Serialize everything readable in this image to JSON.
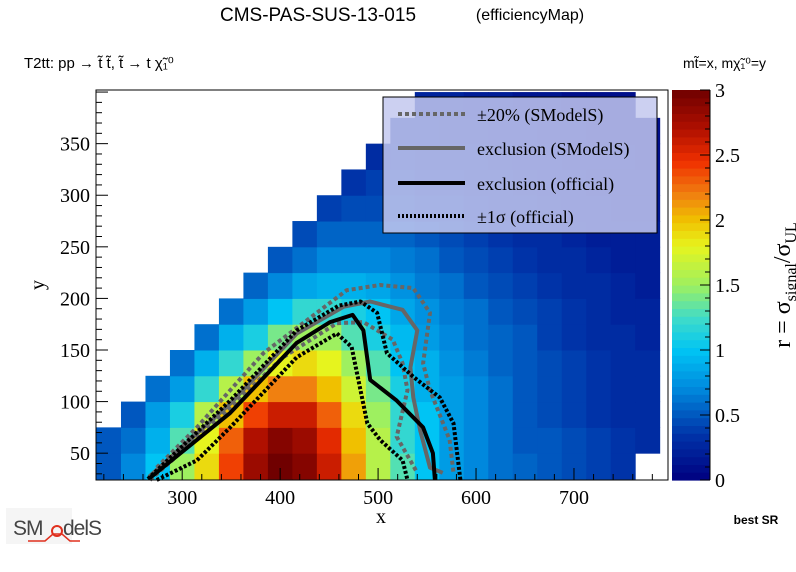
{
  "header": {
    "title": "CMS-PAS-SUS-13-015",
    "subtitle": "(efficiencyMap)",
    "process": "T2tt: pp → t̃ t̃, t̃ → t χ̃₁⁰",
    "mass_def": "mt̃=x, mχ̃₁⁰=y",
    "best_sr": "best SR",
    "logo": "SModelS"
  },
  "chart_data": {
    "type": "heatmap",
    "title": "CMS-PAS-SUS-13-015 (efficiencyMap)",
    "xlabel": "x",
    "ylabel": "y",
    "zlabel_parts": [
      "r = σ",
      "signal",
      "/σ",
      "UL"
    ],
    "xlim": [
      212,
      796
    ],
    "ylim": [
      24,
      402
    ],
    "zlim": [
      0,
      3
    ],
    "x_ticks": [
      "300",
      "400",
      "500",
      "600",
      "700"
    ],
    "y_ticks": [
      "50",
      "100",
      "150",
      "200",
      "250",
      "300",
      "350"
    ],
    "z_ticks": [
      "0",
      "0.5",
      "1",
      "1.5",
      "2",
      "2.5",
      "3"
    ],
    "bin_width": 25,
    "x_centers": [
      225,
      250,
      275,
      300,
      325,
      350,
      375,
      400,
      425,
      450,
      475,
      500,
      525,
      550,
      575,
      600,
      625,
      650,
      675,
      700,
      725,
      750,
      775
    ],
    "y_centers": [
      37.5,
      62.5,
      87.5,
      112.5,
      137.5,
      162.5,
      187.5,
      212.5,
      237.5,
      262.5,
      287.5,
      312.5,
      337.5,
      362.5,
      387.5
    ],
    "values": [
      [
        0.5,
        0.7,
        1.0,
        1.5,
        1.9,
        2.4,
        2.8,
        3.0,
        2.9,
        2.6,
        2.1,
        1.6,
        1.3,
        1.0,
        0.8,
        0.7,
        0.6,
        0.55,
        0.5,
        0.45,
        0.4,
        0.35,
        null
      ],
      [
        0.5,
        0.6,
        0.9,
        1.3,
        1.8,
        2.3,
        2.7,
        2.9,
        2.8,
        2.5,
        2.0,
        1.6,
        1.2,
        1.0,
        0.8,
        0.7,
        0.6,
        0.5,
        0.5,
        0.45,
        0.4,
        0.35,
        0.3
      ],
      [
        null,
        0.5,
        0.8,
        1.1,
        1.6,
        2.0,
        2.4,
        2.6,
        2.6,
        2.3,
        1.9,
        1.5,
        1.2,
        1.0,
        0.8,
        0.7,
        0.6,
        0.5,
        0.45,
        0.4,
        0.35,
        0.3,
        0.3
      ],
      [
        null,
        null,
        0.6,
        0.8,
        1.2,
        1.6,
        2.0,
        2.2,
        2.2,
        2.0,
        1.7,
        1.4,
        1.1,
        0.9,
        0.8,
        0.7,
        0.6,
        0.5,
        0.45,
        0.4,
        0.35,
        0.3,
        0.3
      ],
      [
        null,
        null,
        null,
        0.6,
        0.9,
        1.2,
        1.5,
        1.8,
        1.9,
        1.8,
        1.5,
        1.3,
        1.0,
        0.9,
        0.75,
        0.65,
        0.55,
        0.5,
        0.45,
        0.4,
        0.35,
        0.3,
        0.3
      ],
      [
        null,
        null,
        null,
        null,
        0.6,
        0.9,
        1.1,
        1.4,
        1.5,
        1.5,
        1.3,
        1.1,
        0.95,
        0.8,
        0.7,
        0.6,
        0.55,
        0.5,
        0.4,
        0.35,
        0.3,
        0.3,
        0.25
      ],
      [
        null,
        null,
        null,
        null,
        null,
        0.6,
        0.8,
        1.0,
        1.2,
        1.2,
        1.1,
        1.0,
        0.85,
        0.75,
        0.65,
        0.6,
        0.5,
        0.45,
        0.4,
        0.35,
        0.3,
        0.25,
        0.25
      ],
      [
        null,
        null,
        null,
        null,
        null,
        null,
        0.55,
        0.7,
        0.85,
        0.9,
        0.9,
        0.85,
        0.75,
        0.65,
        0.6,
        0.5,
        0.45,
        0.4,
        0.35,
        0.3,
        0.3,
        0.25,
        0.2
      ],
      [
        null,
        null,
        null,
        null,
        null,
        null,
        null,
        0.5,
        0.6,
        0.7,
        0.7,
        0.7,
        0.65,
        0.6,
        0.5,
        0.45,
        0.4,
        0.35,
        0.3,
        0.3,
        0.25,
        0.2,
        0.2
      ],
      [
        null,
        null,
        null,
        null,
        null,
        null,
        null,
        null,
        0.45,
        0.55,
        0.55,
        0.55,
        0.55,
        0.5,
        0.45,
        0.4,
        0.35,
        0.3,
        0.3,
        0.25,
        0.2,
        0.2,
        0.2
      ],
      [
        null,
        null,
        null,
        null,
        null,
        null,
        null,
        null,
        null,
        0.4,
        0.45,
        0.45,
        0.45,
        0.4,
        0.4,
        0.35,
        0.3,
        0.3,
        0.25,
        0.2,
        0.2,
        0.15,
        0.15
      ],
      [
        null,
        null,
        null,
        null,
        null,
        null,
        null,
        null,
        null,
        null,
        0.35,
        0.4,
        0.4,
        0.35,
        0.35,
        0.3,
        0.3,
        0.25,
        0.2,
        0.2,
        0.15,
        0.15,
        0.15
      ],
      [
        null,
        null,
        null,
        null,
        null,
        null,
        null,
        null,
        null,
        null,
        null,
        0.3,
        0.35,
        0.3,
        0.3,
        0.3,
        0.25,
        0.2,
        0.2,
        0.15,
        0.15,
        0.15,
        0.1
      ],
      [
        null,
        null,
        null,
        null,
        null,
        null,
        null,
        null,
        null,
        null,
        null,
        null,
        0.3,
        0.3,
        0.25,
        0.25,
        0.2,
        0.2,
        0.15,
        0.15,
        0.1,
        0.1,
        0.1
      ],
      [
        null,
        null,
        null,
        null,
        null,
        null,
        null,
        null,
        null,
        null,
        null,
        null,
        null,
        0.25,
        0.25,
        0.2,
        0.2,
        0.15,
        0.15,
        0.1,
        0.1,
        0.1,
        null
      ]
    ],
    "contours": [
      {
        "name": "±20% (SModelS)",
        "style": "gray-dashed",
        "points": [
          [
            274,
            36
          ],
          [
            315,
            75
          ],
          [
            383,
            147
          ],
          [
            468,
            208
          ],
          [
            502,
            213
          ],
          [
            536,
            210
          ],
          [
            553,
            186
          ],
          [
            546,
            137
          ],
          [
            553,
            111
          ],
          [
            573,
            63
          ],
          [
            577,
            31
          ]
        ]
      },
      {
        "name": "±20% (SModelS)",
        "style": "gray-dashed",
        "points": [
          [
            267,
            24
          ],
          [
            332,
            79
          ],
          [
            403,
            143
          ],
          [
            458,
            176
          ],
          [
            485,
            177
          ],
          [
            515,
            160
          ],
          [
            525,
            137
          ],
          [
            530,
            111
          ],
          [
            519,
            66
          ],
          [
            540,
            31
          ]
        ]
      },
      {
        "name": "exclusion (SModelS)",
        "style": "gray-solid",
        "points": [
          [
            266,
            27
          ],
          [
            349,
            98
          ],
          [
            417,
            166
          ],
          [
            465,
            192
          ],
          [
            492,
            197
          ],
          [
            525,
            189
          ],
          [
            540,
            169
          ],
          [
            533,
            133
          ],
          [
            536,
            104
          ],
          [
            543,
            72
          ],
          [
            553,
            36
          ],
          [
            566,
            31
          ]
        ]
      },
      {
        "name": "exclusion (official)",
        "style": "black-solid",
        "points": [
          [
            267,
            26
          ],
          [
            349,
            89
          ],
          [
            417,
            157
          ],
          [
            451,
            177
          ],
          [
            474,
            184
          ],
          [
            485,
            169
          ],
          [
            492,
            121
          ],
          [
            519,
            101
          ],
          [
            546,
            75
          ],
          [
            556,
            50
          ],
          [
            558,
            24
          ]
        ]
      },
      {
        "name": "±1σ (official)",
        "style": "black-dotted",
        "points": [
          [
            265,
            25
          ],
          [
            349,
            101
          ],
          [
            417,
            169
          ],
          [
            460,
            193
          ],
          [
            482,
            197
          ],
          [
            499,
            186
          ],
          [
            509,
            147
          ],
          [
            536,
            124
          ],
          [
            563,
            104
          ],
          [
            577,
            79
          ],
          [
            584,
            24
          ]
        ]
      },
      {
        "name": "±1σ (official)",
        "style": "black-dotted",
        "points": [
          [
            274,
            24
          ],
          [
            315,
            43
          ],
          [
            349,
            75
          ],
          [
            417,
            143
          ],
          [
            458,
            166
          ],
          [
            473,
            153
          ],
          [
            482,
            111
          ],
          [
            489,
            79
          ],
          [
            502,
            63
          ],
          [
            525,
            43
          ],
          [
            530,
            24
          ]
        ]
      }
    ],
    "legend": {
      "placement": "top-right",
      "entries": [
        "±20% (SModelS)",
        "exclusion (SModelS)",
        "exclusion (official)",
        "±1σ (official)"
      ]
    }
  }
}
